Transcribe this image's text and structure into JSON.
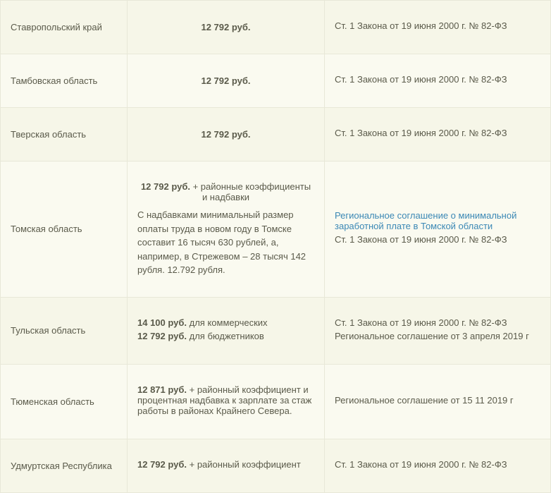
{
  "rows": [
    {
      "region": "Ставропольский край",
      "amount_bold": "12 792 руб.",
      "amount_centered": true,
      "law_lines": [
        {
          "text": "Ст. 1 Закона от 19 июня 2000 г. № 82-ФЗ",
          "link": false
        }
      ]
    },
    {
      "region": "Тамбовская область",
      "amount_bold": "12 792 руб.",
      "amount_centered": true,
      "law_lines": [
        {
          "text": "Ст. 1 Закона от 19 июня 2000 г. № 82-ФЗ",
          "link": false
        }
      ]
    },
    {
      "region": "Тверская область",
      "amount_bold": "12 792 руб.",
      "amount_centered": true,
      "law_lines": [
        {
          "text": "Ст. 1 Закона от 19 июня 2000 г. № 82-ФЗ",
          "link": false
        }
      ]
    },
    {
      "region": "Томская область",
      "amount_lines": [
        {
          "bold": "12 792 руб.",
          "rest": " + районные коэффициенты и надбавки",
          "centered": true
        }
      ],
      "amount_note": "С надбавками минимальный размер оплаты труда в новом году в Томске составит 16 тысяч 630 рублей, а, например, в Стрежевом – 28 тысяч 142 рубля. 12.792 рубля.",
      "law_lines": [
        {
          "text": "Региональное соглашение о минимальной заработной плате в Томской области",
          "link": true
        },
        {
          "text": "Ст. 1 Закона от 19 июня 2000 г. № 82-ФЗ",
          "link": false
        }
      ]
    },
    {
      "region": "Тульская область",
      "amount_lines": [
        {
          "bold": "14 100 руб.",
          "rest": " для коммерческих"
        },
        {
          "bold": "12 792 руб.",
          "rest": " для бюджетников"
        }
      ],
      "law_lines": [
        {
          "text": "Ст. 1 Закона от 19 июня 2000 г. № 82-ФЗ",
          "link": false
        },
        {
          "text": "Региональное соглашение от 3 апреля 2019 г",
          "link": false
        }
      ]
    },
    {
      "region": "Тюменская область",
      "amount_lines": [
        {
          "bold": "12 871   руб.",
          "rest": " + районный коэффициент и процентная надбавка к зарплате за стаж работы в районах Крайнего Севера."
        }
      ],
      "law_lines": [
        {
          "text": "Региональное соглашение от 15 11  2019 г",
          "link": false
        }
      ]
    },
    {
      "region": "Удмуртская Республика",
      "amount_lines": [
        {
          "bold": "12 792 руб.",
          "rest": " + районный коэффициент"
        }
      ],
      "law_lines": [
        {
          "text": "Ст. 1 Закона от 19 июня 2000 г. № 82-ФЗ",
          "link": false
        }
      ]
    }
  ]
}
